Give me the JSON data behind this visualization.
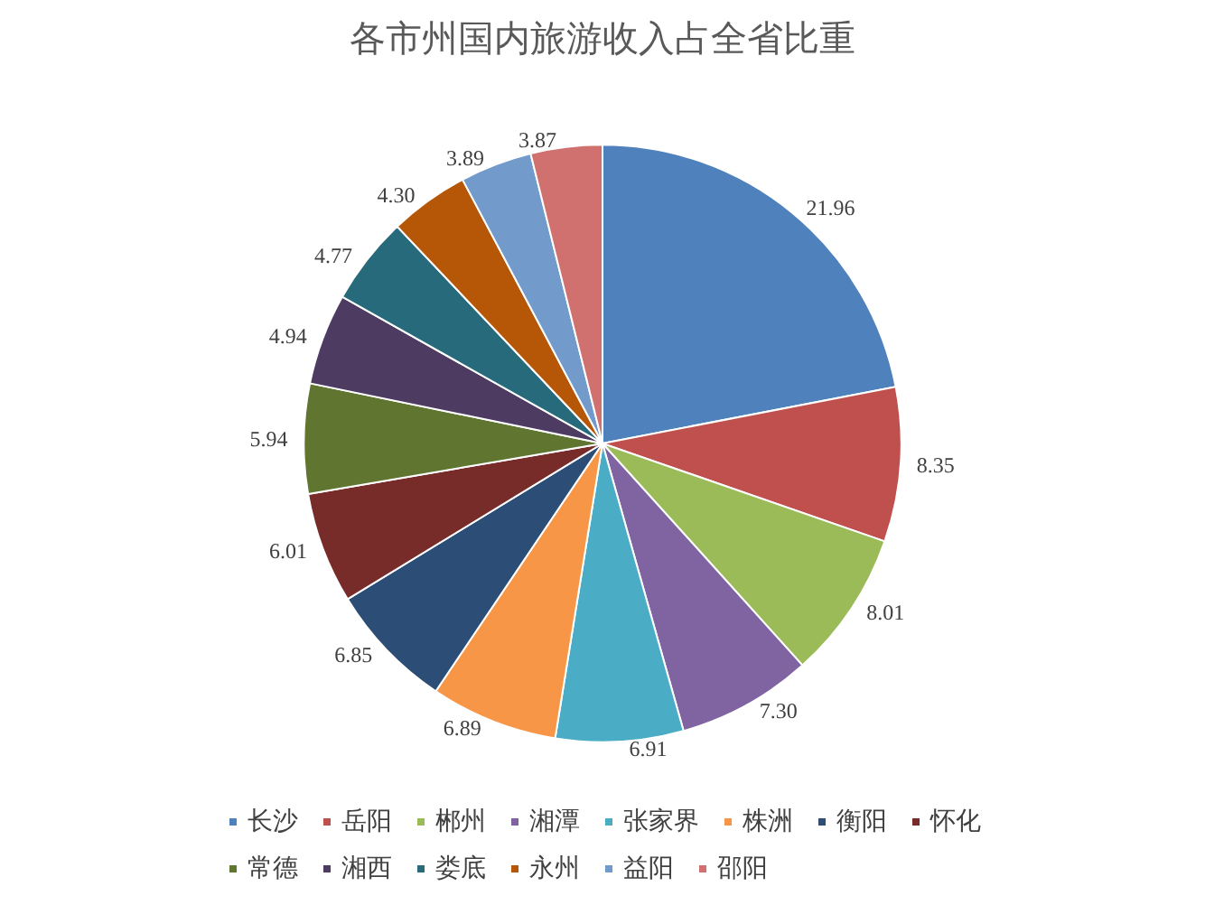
{
  "chart_data": {
    "type": "pie",
    "title": "各市州国内旅游收入占全省比重",
    "categories": [
      "长沙",
      "岳阳",
      "郴州",
      "湘潭",
      "张家界",
      "株洲",
      "衡阳",
      "怀化",
      "常德",
      "湘西",
      "娄底",
      "永州",
      "益阳",
      "邵阳"
    ],
    "values": [
      21.96,
      8.35,
      8.01,
      7.3,
      6.91,
      6.89,
      6.85,
      6.01,
      5.94,
      4.94,
      4.77,
      4.3,
      3.89,
      3.87
    ],
    "colors": [
      "#4f81bd",
      "#c0504d",
      "#9bbb59",
      "#8064a2",
      "#4bacc6",
      "#f79646",
      "#2c4d75",
      "#772c2a",
      "#5f7530",
      "#4d3b62",
      "#276a7c",
      "#b65708",
      "#729aca",
      "#d0716f"
    ],
    "value_labels": [
      "21.96",
      "8.35",
      "8.01",
      "7.30",
      "6.91",
      "6.89",
      "6.85",
      "6.01",
      "5.94",
      "4.94",
      "4.77",
      "4.30",
      "3.89",
      "3.87"
    ],
    "legend": "bottom"
  }
}
